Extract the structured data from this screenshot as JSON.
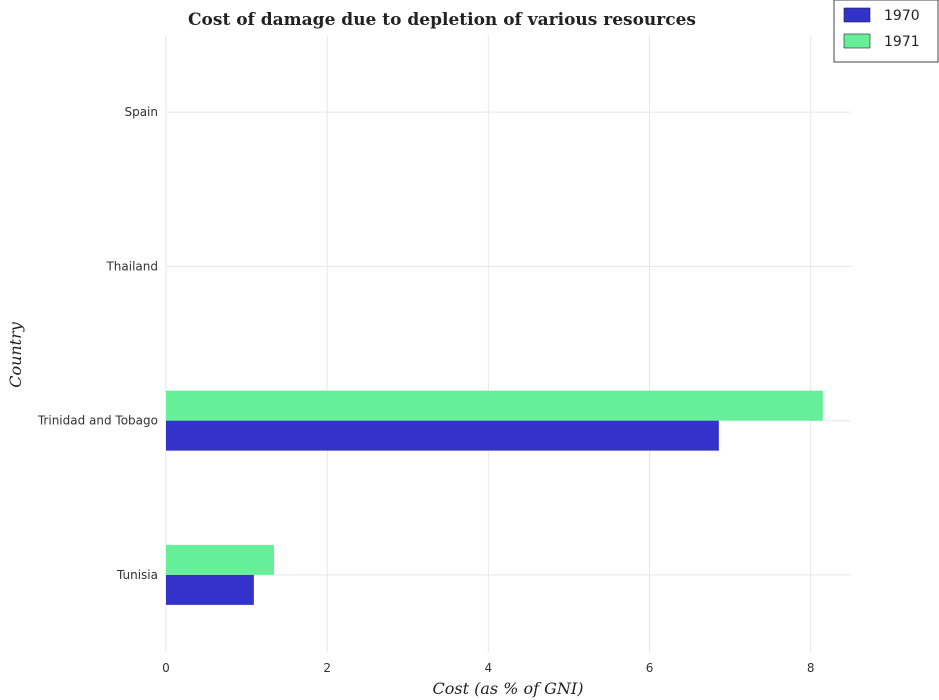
{
  "chart_data": {
    "type": "bar",
    "orientation": "horizontal",
    "title": "Cost of damage due to depletion of various resources",
    "xlabel": "Cost (as % of GNI)",
    "ylabel": "Country",
    "categories": [
      "Spain",
      "Thailand",
      "Trinidad and Tobago",
      "Tunisia"
    ],
    "series": [
      {
        "name": "1970",
        "color": "#3333cc",
        "values": [
          0,
          0,
          6.86,
          1.09
        ]
      },
      {
        "name": "1971",
        "color": "#66ee99",
        "values": [
          0,
          0,
          8.15,
          1.34
        ]
      }
    ],
    "xlim": [
      0,
      8.5
    ],
    "xticks": [
      "0",
      "2",
      "4",
      "6",
      "8"
    ],
    "grid": true,
    "legend_position": "top-right"
  }
}
